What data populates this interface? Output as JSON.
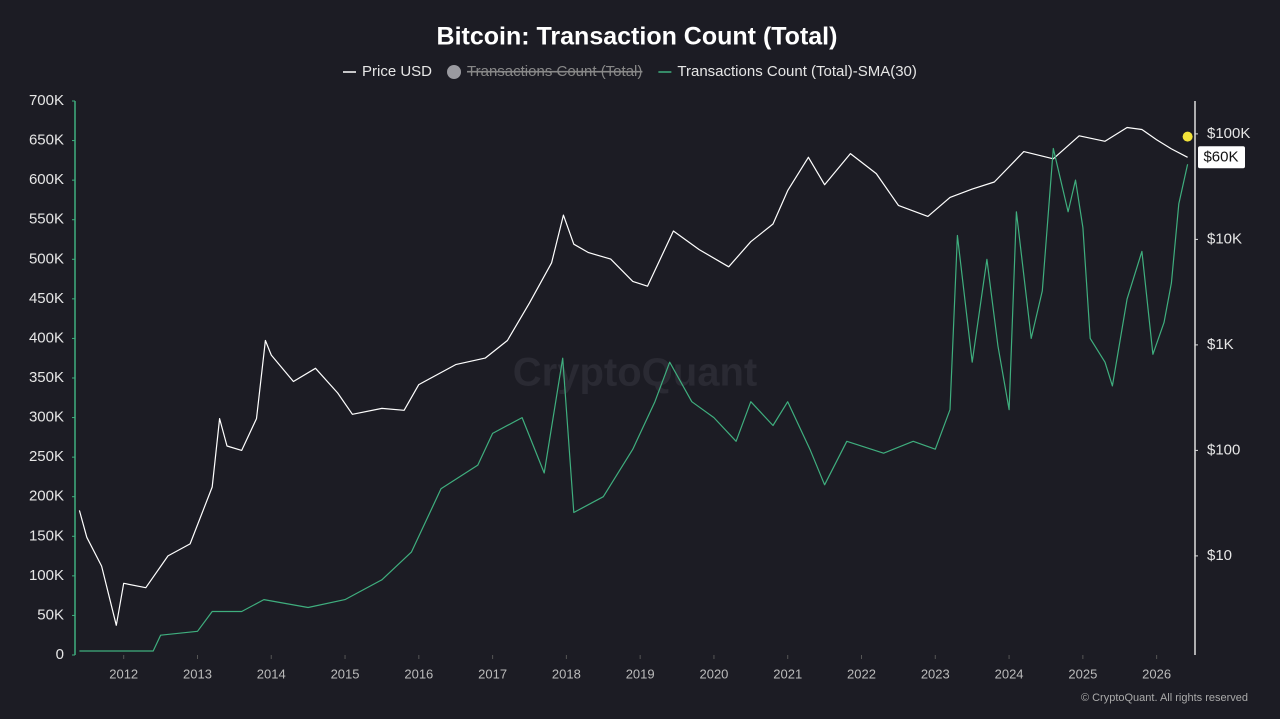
{
  "chart_data": {
    "type": "line",
    "title": "Bitcoin: Transaction Count (Total)",
    "watermark": "CryptoQuant",
    "footer": "© CryptoQuant. All rights reserved",
    "xlim": [
      2011.34,
      2026.52
    ],
    "xticks": [
      2012,
      2013,
      2014,
      2015,
      2016,
      2017,
      2018,
      2019,
      2020,
      2021,
      2022,
      2023,
      2024,
      2025,
      2026
    ],
    "ylim": [
      0,
      700000
    ],
    "yticks": [
      0,
      {
        "value": 50000,
        "label": "50K"
      },
      {
        "value": 100000,
        "label": "100K"
      },
      {
        "value": 150000,
        "label": "150K"
      },
      {
        "value": 200000,
        "label": "200K"
      },
      {
        "value": 250000,
        "label": "250K"
      },
      {
        "value": 300000,
        "label": "300K"
      },
      {
        "value": 350000,
        "label": "350K"
      },
      {
        "value": 400000,
        "label": "400K"
      },
      {
        "value": 450000,
        "label": "450K"
      },
      {
        "value": 500000,
        "label": "500K"
      },
      {
        "value": 550000,
        "label": "550K"
      },
      {
        "value": 600000,
        "label": "600K"
      },
      {
        "value": 650000,
        "label": "650K"
      },
      {
        "value": 700000,
        "label": "700K"
      }
    ],
    "y2lim": [
      1.15,
      205000
    ],
    "y2scale": "log",
    "y2ticks": [
      {
        "value": 100000,
        "label": "$100K"
      },
      {
        "value": 10000,
        "label": "$10K"
      },
      {
        "value": 1000,
        "label": "$1K"
      },
      {
        "value": 100,
        "label": "$100"
      },
      {
        "value": 10,
        "label": "$10"
      }
    ],
    "hidden_series": [
      {
        "name": "Transactions Count (Total)",
        "color": "#9a9aa0"
      }
    ],
    "series": [
      {
        "name": "Price USD",
        "color": "#ffffff",
        "axis": "y2",
        "last_label": "$60K",
        "x": [
          2011.4,
          2011.5,
          2011.7,
          2011.9,
          2012.0,
          2012.3,
          2012.6,
          2012.9,
          2013.2,
          2013.3,
          2013.4,
          2013.6,
          2013.8,
          2013.92,
          2014.0,
          2014.3,
          2014.6,
          2014.9,
          2015.1,
          2015.5,
          2015.8,
          2016.0,
          2016.5,
          2016.9,
          2017.2,
          2017.5,
          2017.8,
          2017.96,
          2018.1,
          2018.3,
          2018.6,
          2018.9,
          2019.1,
          2019.45,
          2019.8,
          2020.2,
          2020.5,
          2020.8,
          2021.0,
          2021.28,
          2021.5,
          2021.85,
          2022.2,
          2022.5,
          2022.9,
          2023.2,
          2023.5,
          2023.8,
          2024.2,
          2024.6,
          2024.95,
          2025.3,
          2025.6,
          2025.8,
          2026.0,
          2026.2,
          2026.42
        ],
        "values": [
          27,
          15,
          8,
          2.2,
          5.5,
          5,
          10,
          13,
          45,
          200,
          110,
          100,
          200,
          1100,
          800,
          450,
          600,
          350,
          220,
          250,
          240,
          420,
          650,
          750,
          1100,
          2500,
          6000,
          17000,
          9000,
          7500,
          6500,
          4000,
          3600,
          12000,
          8000,
          5500,
          9500,
          14000,
          29000,
          60000,
          33000,
          65000,
          42000,
          21000,
          16500,
          25000,
          30000,
          35000,
          68000,
          58000,
          96000,
          85000,
          115000,
          110000,
          88000,
          72000,
          60000
        ]
      },
      {
        "name": "Transactions Count (Total)-SMA(30)",
        "color": "#3fae7e",
        "axis": "y",
        "x": [
          2011.4,
          2012.4,
          2012.5,
          2013.0,
          2013.2,
          2013.6,
          2013.9,
          2014.5,
          2015.0,
          2015.5,
          2015.9,
          2016.3,
          2016.8,
          2017.0,
          2017.4,
          2017.7,
          2017.95,
          2018.1,
          2018.5,
          2018.9,
          2019.2,
          2019.4,
          2019.7,
          2020.0,
          2020.3,
          2020.5,
          2020.8,
          2021.0,
          2021.3,
          2021.5,
          2021.8,
          2022.3,
          2022.7,
          2023.0,
          2023.2,
          2023.3,
          2023.5,
          2023.7,
          2023.85,
          2024.0,
          2024.1,
          2024.3,
          2024.45,
          2024.6,
          2024.8,
          2024.9,
          2025.0,
          2025.1,
          2025.3,
          2025.4,
          2025.6,
          2025.8,
          2025.95,
          2026.1,
          2026.2,
          2026.3,
          2026.42
        ],
        "values": [
          5000,
          5000,
          25000,
          30000,
          55000,
          55000,
          70000,
          60000,
          70000,
          95000,
          130000,
          210000,
          240000,
          280000,
          300000,
          230000,
          375000,
          180000,
          200000,
          260000,
          320000,
          370000,
          320000,
          300000,
          270000,
          320000,
          290000,
          320000,
          260000,
          215000,
          270000,
          255000,
          270000,
          260000,
          310000,
          530000,
          370000,
          500000,
          390000,
          310000,
          560000,
          400000,
          460000,
          640000,
          560000,
          600000,
          540000,
          400000,
          370000,
          340000,
          450000,
          510000,
          380000,
          420000,
          470000,
          570000,
          620000
        ]
      }
    ],
    "highlight": {
      "x": 2026.42,
      "value": 655000,
      "color": "#f2e33a"
    }
  }
}
